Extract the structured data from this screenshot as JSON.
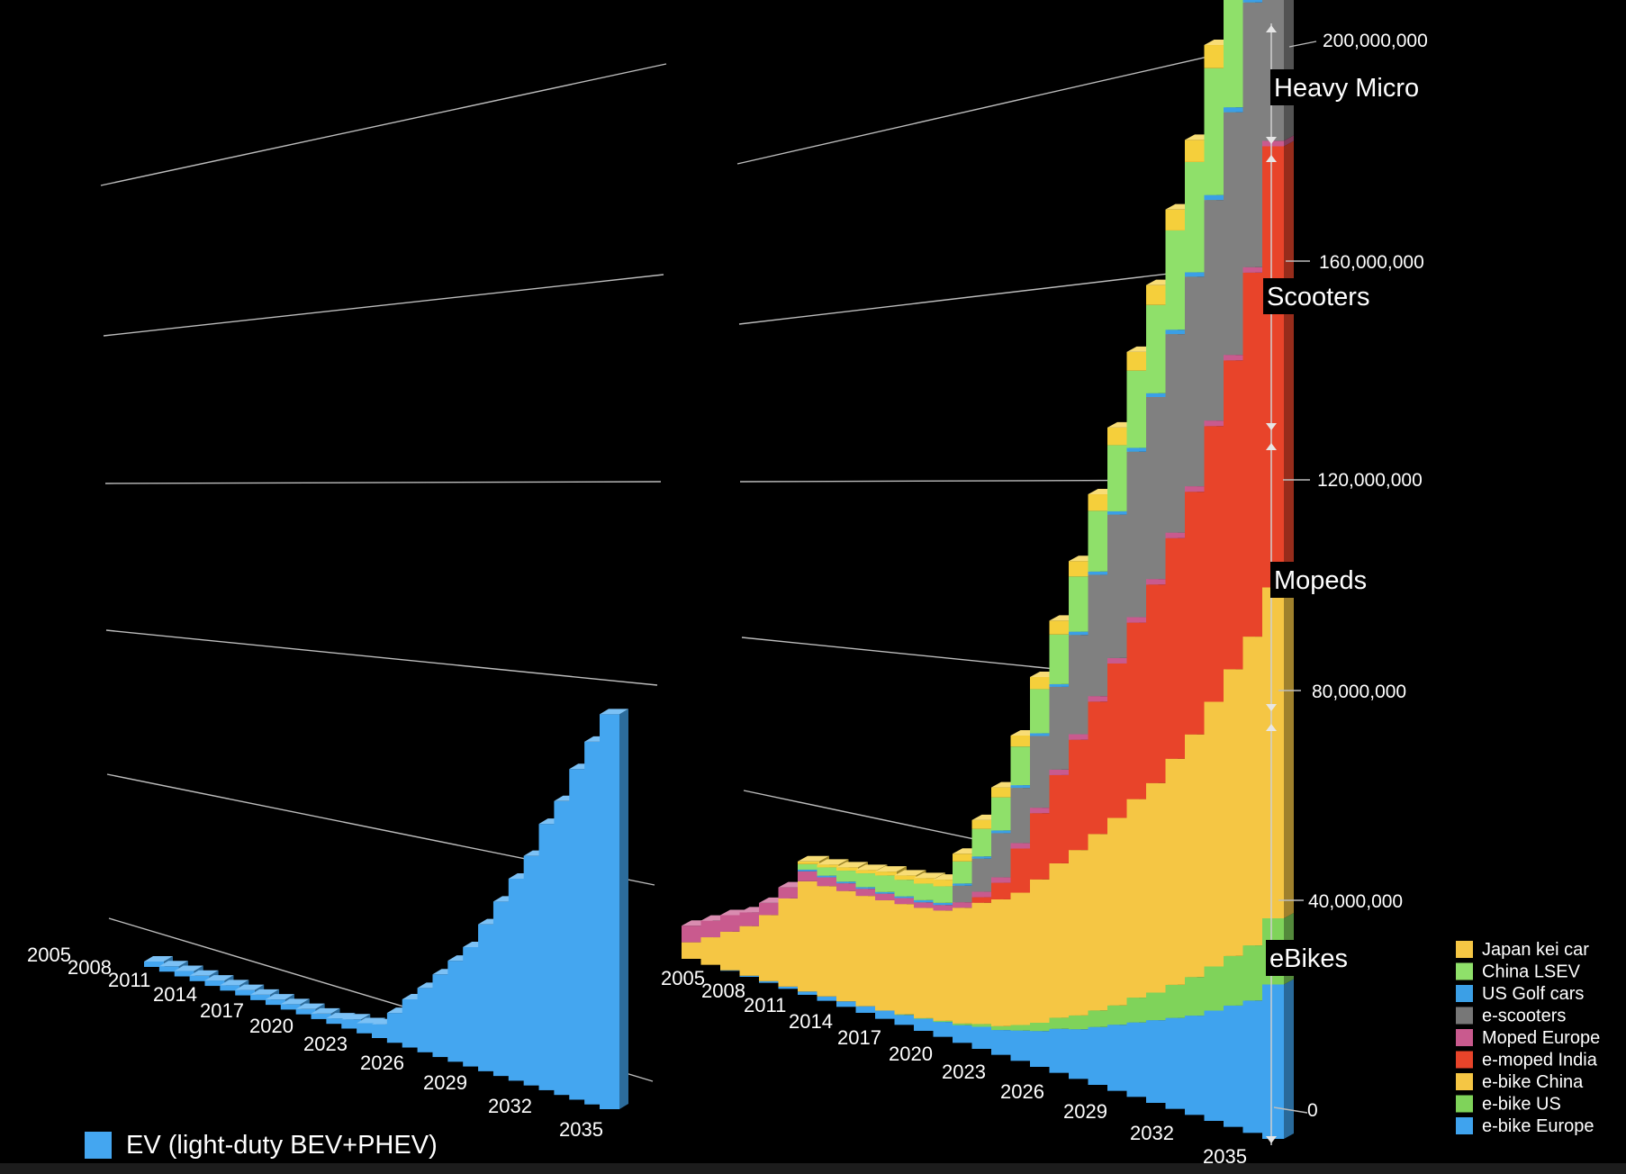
{
  "chart_data": [
    {
      "type": "bar",
      "x": [
        2005,
        2006,
        2007,
        2008,
        2009,
        2010,
        2011,
        2012,
        2013,
        2014,
        2015,
        2016,
        2017,
        2018,
        2019,
        2020,
        2021,
        2022,
        2023,
        2024,
        2025,
        2026,
        2027,
        2028,
        2029,
        2030,
        2031,
        2032,
        2033,
        2034,
        2035
      ],
      "x_tick_labels": [
        "2005",
        "2008",
        "2011",
        "2014",
        "2017",
        "2020",
        "2023",
        "2026",
        "2029",
        "2032",
        "2035"
      ],
      "series": [
        {
          "name": "EV (light-duty BEV+PHEV)",
          "color": "#44a6f0",
          "values": [
            0,
            0,
            0,
            0,
            0,
            0,
            0,
            0.1,
            0.2,
            0.3,
            0.5,
            0.8,
            1.2,
            2.0,
            2.2,
            3.0,
            6.5,
            10.5,
            14,
            18,
            22,
            26,
            32,
            38,
            44,
            50,
            58,
            64,
            72,
            79,
            86
          ]
        }
      ]
    },
    {
      "type": "bar",
      "stacked": true,
      "x": [
        2005,
        2006,
        2007,
        2008,
        2009,
        2010,
        2011,
        2012,
        2013,
        2014,
        2015,
        2016,
        2017,
        2018,
        2019,
        2020,
        2021,
        2022,
        2023,
        2024,
        2025,
        2026,
        2027,
        2028,
        2029,
        2030,
        2031,
        2032,
        2033,
        2034,
        2035
      ],
      "x_tick_labels": [
        "2005",
        "2008",
        "2011",
        "2014",
        "2017",
        "2020",
        "2023",
        "2026",
        "2029",
        "2032",
        "2035"
      ],
      "y_ticks": [
        "0",
        "40,000,000",
        "80,000,000",
        "120,000,000",
        "160,000,000",
        "200,000,000"
      ],
      "ylim": [
        0,
        200000000
      ],
      "series": [
        {
          "name": "e-bike Europe",
          "color": "#3fa3ee",
          "values": [
            0,
            0,
            0.1,
            0.2,
            0.3,
            0.4,
            0.6,
            0.8,
            1.0,
            1.2,
            1.5,
            1.8,
            2.2,
            2.7,
            3.2,
            4.0,
            4.5,
            5.5,
            6.5,
            8,
            9,
            10.5,
            12,
            13.5,
            15,
            16.5,
            18,
            20,
            22,
            24,
            28
          ]
        },
        {
          "name": "e-bike US",
          "color": "#7fd35a",
          "values": [
            0,
            0,
            0,
            0,
            0,
            0,
            0,
            0,
            0,
            0,
            0,
            0.1,
            0.1,
            0.2,
            0.3,
            0.5,
            0.7,
            1,
            1.5,
            2,
            2.5,
            3,
            3.5,
            4.5,
            5,
            6,
            7,
            8,
            9,
            10,
            12
          ]
        },
        {
          "name": "e-bike China",
          "color": "#f5c644",
          "values": [
            3,
            5,
            7,
            9,
            12,
            16,
            20,
            20,
            20,
            20,
            20,
            20,
            20,
            20,
            21,
            22,
            23,
            24,
            26,
            28,
            30,
            32,
            34,
            36,
            38,
            41,
            44,
            48,
            52,
            56,
            60
          ]
        },
        {
          "name": "e-moped India",
          "color": "#e8442a",
          "values": [
            0,
            0,
            0,
            0,
            0,
            0,
            0,
            0,
            0,
            0,
            0,
            0,
            0,
            0,
            0,
            1,
            3,
            8,
            12,
            16,
            20,
            24,
            28,
            32,
            36,
            40,
            44,
            50,
            56,
            66,
            80
          ]
        },
        {
          "name": "Moped Europe",
          "color": "#c95a8e",
          "values": [
            3,
            3,
            3,
            2.5,
            2.2,
            2,
            1.8,
            1.6,
            1.4,
            1.3,
            1.2,
            1.1,
            1,
            1,
            1,
            1,
            1,
            1,
            1,
            1,
            1,
            1,
            1,
            1,
            1,
            1,
            1,
            1,
            1,
            1,
            1
          ]
        },
        {
          "name": "e-scooters",
          "color": "#808080",
          "values": [
            0,
            0,
            0,
            0,
            0,
            0,
            0,
            0,
            0,
            0,
            0,
            0,
            0,
            0,
            3,
            6,
            8,
            10,
            13,
            15,
            18,
            22,
            26,
            30,
            33,
            36,
            38,
            40,
            44,
            48,
            53
          ]
        },
        {
          "name": "US Golf cars",
          "color": "#3b9fe6",
          "values": [
            0,
            0,
            0,
            0,
            0,
            0,
            0.3,
            0.3,
            0.3,
            0.3,
            0.3,
            0.3,
            0.4,
            0.4,
            0.4,
            0.4,
            0.5,
            0.5,
            0.5,
            0.5,
            0.6,
            0.6,
            0.6,
            0.7,
            0.7,
            0.8,
            0.8,
            0.9,
            0.9,
            1,
            1
          ]
        },
        {
          "name": "China LSEV",
          "color": "#8fe06a",
          "values": [
            0,
            0,
            0,
            0,
            0,
            0,
            1,
            1.5,
            2,
            2.5,
            3,
            3,
            3,
            3,
            4,
            5,
            6,
            7,
            8,
            9,
            10,
            11,
            12,
            14,
            16,
            18,
            20,
            23,
            26,
            30,
            34
          ]
        },
        {
          "name": "Japan kei car",
          "color": "#f5cf3b",
          "values": [
            0,
            0,
            0,
            0,
            0,
            0,
            0.5,
            0.5,
            0.6,
            0.6,
            0.7,
            0.8,
            1,
            1.2,
            1.4,
            1.6,
            1.8,
            2,
            2.2,
            2.5,
            2.8,
            3,
            3.2,
            3.4,
            3.6,
            3.8,
            4,
            4.2,
            4.5,
            4.8,
            5
          ]
        }
      ],
      "segment_labels": [
        "Heavy Micro",
        "Scooters",
        "Mopeds",
        "eBikes"
      ]
    }
  ],
  "legend": [
    {
      "label": "Japan kei car",
      "color": "#f5c644"
    },
    {
      "label": "China LSEV",
      "color": "#8fe06a"
    },
    {
      "label": "US Golf cars",
      "color": "#3b9fe6"
    },
    {
      "label": "e-scooters",
      "color": "#777777"
    },
    {
      "label": "Moped Europe",
      "color": "#c95a8e"
    },
    {
      "label": "e-moped India",
      "color": "#e8442a"
    },
    {
      "label": "e-bike China",
      "color": "#f5c644"
    },
    {
      "label": "e-bike US",
      "color": "#7fd35a"
    },
    {
      "label": "e-bike Europe",
      "color": "#3fa3ee"
    }
  ],
  "ev_legend": {
    "label": "EV (light-duty BEV+PHEV)",
    "color": "#44a6f0"
  }
}
